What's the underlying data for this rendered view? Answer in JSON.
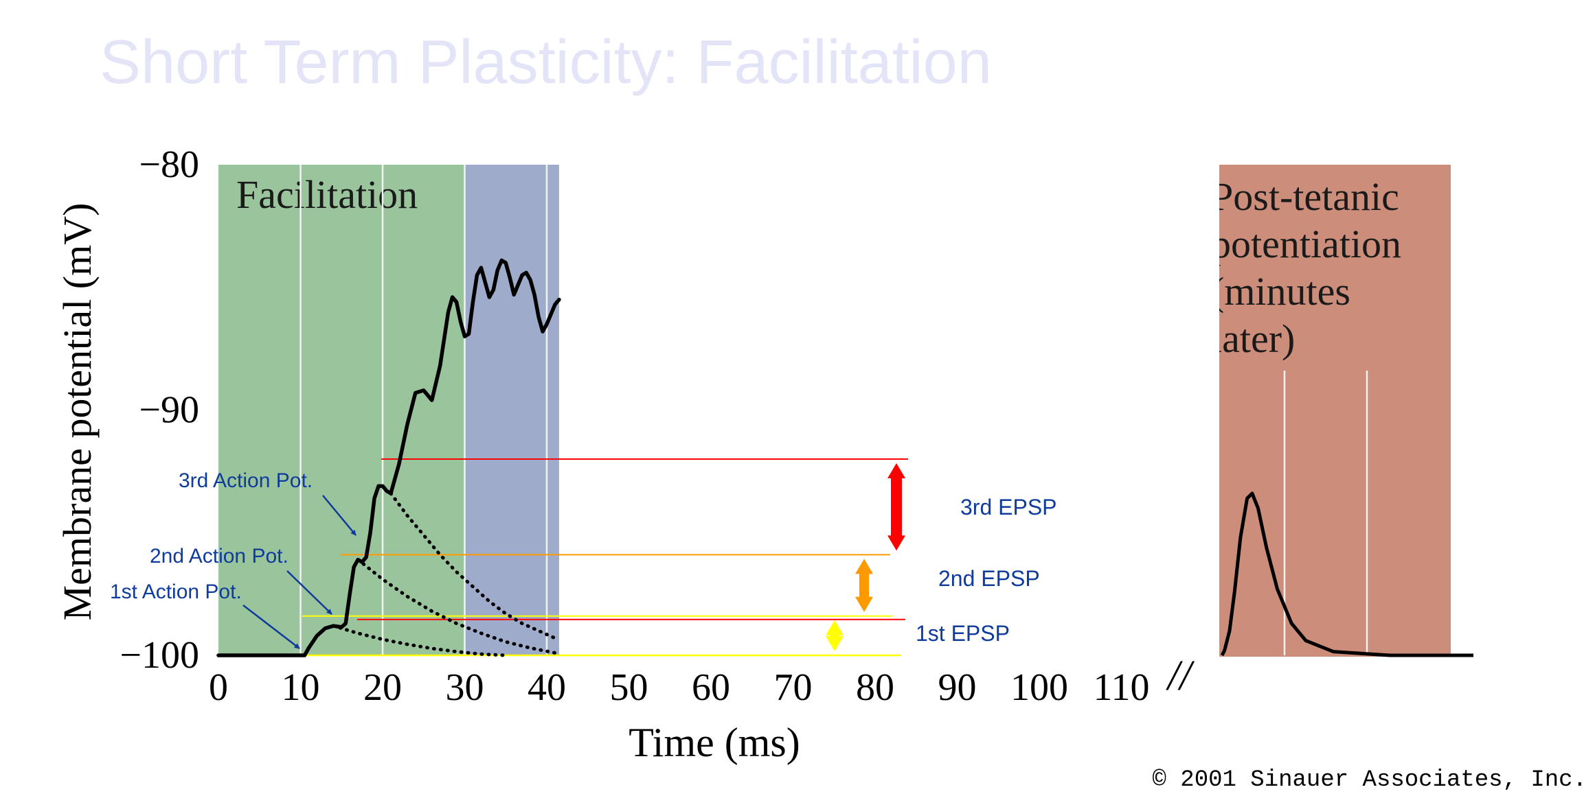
{
  "slide": {
    "title": "Short Term Plasticity: Facilitation",
    "copyright": "© 2001 Sinauer Associates, Inc.",
    "axis_break": "//"
  },
  "chart_data": {
    "type": "line",
    "xlabel": "Time (ms)",
    "ylabel": "Membrane potential (mV)",
    "x_ticks": [
      0,
      10,
      20,
      30,
      40,
      50,
      60,
      70,
      80,
      90,
      100,
      110
    ],
    "y_ticks": [
      -80,
      -90,
      -100
    ],
    "xlim": [
      0,
      115
    ],
    "ylim": [
      -100,
      -80
    ],
    "regions": [
      {
        "label": "Facilitation",
        "x0": 0,
        "x1": 30,
        "color": "#9ac49c"
      },
      {
        "label": "",
        "x0": 30,
        "x1": 41.5,
        "color": "#9fabca"
      }
    ],
    "post_region": {
      "label": [
        "Post-tetanic",
        "potentiation",
        "(minutes",
        "later)"
      ],
      "color": "#cc8e7a"
    },
    "series": [
      {
        "style": "solid",
        "points": [
          [
            0,
            -100
          ],
          [
            10.5,
            -100
          ],
          [
            11,
            -99.7
          ],
          [
            12,
            -99.2
          ],
          [
            13,
            -98.9
          ],
          [
            14,
            -98.8
          ],
          [
            15,
            -98.85
          ],
          [
            15.5,
            -98.7
          ],
          [
            16,
            -97.5
          ],
          [
            16.5,
            -96.4
          ],
          [
            17,
            -96.1
          ],
          [
            17.5,
            -96.2
          ],
          [
            18,
            -96.0
          ],
          [
            18.5,
            -95.0
          ],
          [
            19,
            -93.6
          ],
          [
            19.5,
            -93.1
          ],
          [
            20,
            -93.1
          ],
          [
            20.5,
            -93.3
          ],
          [
            21,
            -93.4
          ],
          [
            22,
            -92.2
          ],
          [
            23,
            -90.6
          ],
          [
            24,
            -89.3
          ],
          [
            25,
            -89.2
          ],
          [
            26,
            -89.6
          ],
          [
            27,
            -88.2
          ],
          [
            28,
            -86.0
          ],
          [
            28.5,
            -85.4
          ],
          [
            29,
            -85.6
          ],
          [
            29.5,
            -86.4
          ],
          [
            30,
            -87.0
          ],
          [
            30.5,
            -86.9
          ],
          [
            31,
            -85.6
          ],
          [
            31.5,
            -84.5
          ],
          [
            32,
            -84.2
          ],
          [
            32.5,
            -84.8
          ],
          [
            33,
            -85.4
          ],
          [
            33.5,
            -85.1
          ],
          [
            34,
            -84.3
          ],
          [
            34.5,
            -83.9
          ],
          [
            35,
            -84.0
          ],
          [
            35.5,
            -84.6
          ],
          [
            36,
            -85.3
          ],
          [
            37,
            -84.5
          ],
          [
            37.5,
            -84.4
          ],
          [
            38,
            -84.7
          ],
          [
            38.5,
            -85.3
          ],
          [
            39,
            -86.2
          ],
          [
            39.5,
            -86.8
          ],
          [
            40,
            -86.5
          ],
          [
            41,
            -85.7
          ],
          [
            41.5,
            -85.5
          ]
        ]
      },
      {
        "style": "dotted",
        "points": [
          [
            14,
            -98.8
          ],
          [
            17,
            -99.1
          ],
          [
            20,
            -99.35
          ],
          [
            23,
            -99.55
          ],
          [
            26,
            -99.72
          ],
          [
            29,
            -99.85
          ],
          [
            32,
            -99.95
          ],
          [
            35,
            -100.0
          ]
        ]
      },
      {
        "style": "dotted",
        "points": [
          [
            17,
            -96.1
          ],
          [
            20,
            -96.9
          ],
          [
            23,
            -97.6
          ],
          [
            26,
            -98.2
          ],
          [
            29,
            -98.7
          ],
          [
            32,
            -99.1
          ],
          [
            35,
            -99.45
          ],
          [
            38,
            -99.7
          ],
          [
            41,
            -99.9
          ]
        ]
      },
      {
        "style": "dotted",
        "points": [
          [
            21,
            -93.4
          ],
          [
            23,
            -94.3
          ],
          [
            25,
            -95.1
          ],
          [
            27,
            -95.9
          ],
          [
            29,
            -96.6
          ],
          [
            31,
            -97.2
          ],
          [
            33,
            -97.8
          ],
          [
            35,
            -98.3
          ],
          [
            37,
            -98.7
          ],
          [
            39,
            -99.0
          ],
          [
            41,
            -99.3
          ]
        ]
      }
    ],
    "post_series": {
      "style": "solid",
      "points": [
        [
          0,
          -100
        ],
        [
          0.3,
          -99.8
        ],
        [
          0.9,
          -99.0
        ],
        [
          1.5,
          -97.4
        ],
        [
          2.2,
          -95.2
        ],
        [
          3.0,
          -93.6
        ],
        [
          3.6,
          -93.4
        ],
        [
          4.3,
          -94.0
        ],
        [
          5.3,
          -95.6
        ],
        [
          6.6,
          -97.3
        ],
        [
          8.3,
          -98.7
        ],
        [
          10.0,
          -99.4
        ],
        [
          13.3,
          -99.85
        ],
        [
          20,
          -100.0
        ],
        [
          30,
          -100.0
        ]
      ]
    },
    "annotations": [
      {
        "text": "3rd Action Pot.",
        "color": "#0f3b9c"
      },
      {
        "text": "2nd Action Pot.",
        "color": "#0f3b9c"
      },
      {
        "text": "1st Action Pot.",
        "color": "#0f3b9c"
      },
      {
        "text": "3rd EPSP",
        "color": "#0f3b9c"
      },
      {
        "text": "2nd EPSP",
        "color": "#0f3b9c"
      },
      {
        "text": "1st EPSP",
        "color": "#0f3b9c"
      }
    ],
    "epsp_levels": [
      {
        "name": "1st EPSP",
        "y_low": -100,
        "y_high": -98.4,
        "color": "#ffff00"
      },
      {
        "name": "2nd EPSP",
        "y_low": -98.4,
        "y_high": -95.9,
        "color": "#ff9900"
      },
      {
        "name": "3rd EPSP",
        "y_low": -95.9,
        "y_high": -92.0,
        "color": "#ff0000"
      }
    ]
  }
}
